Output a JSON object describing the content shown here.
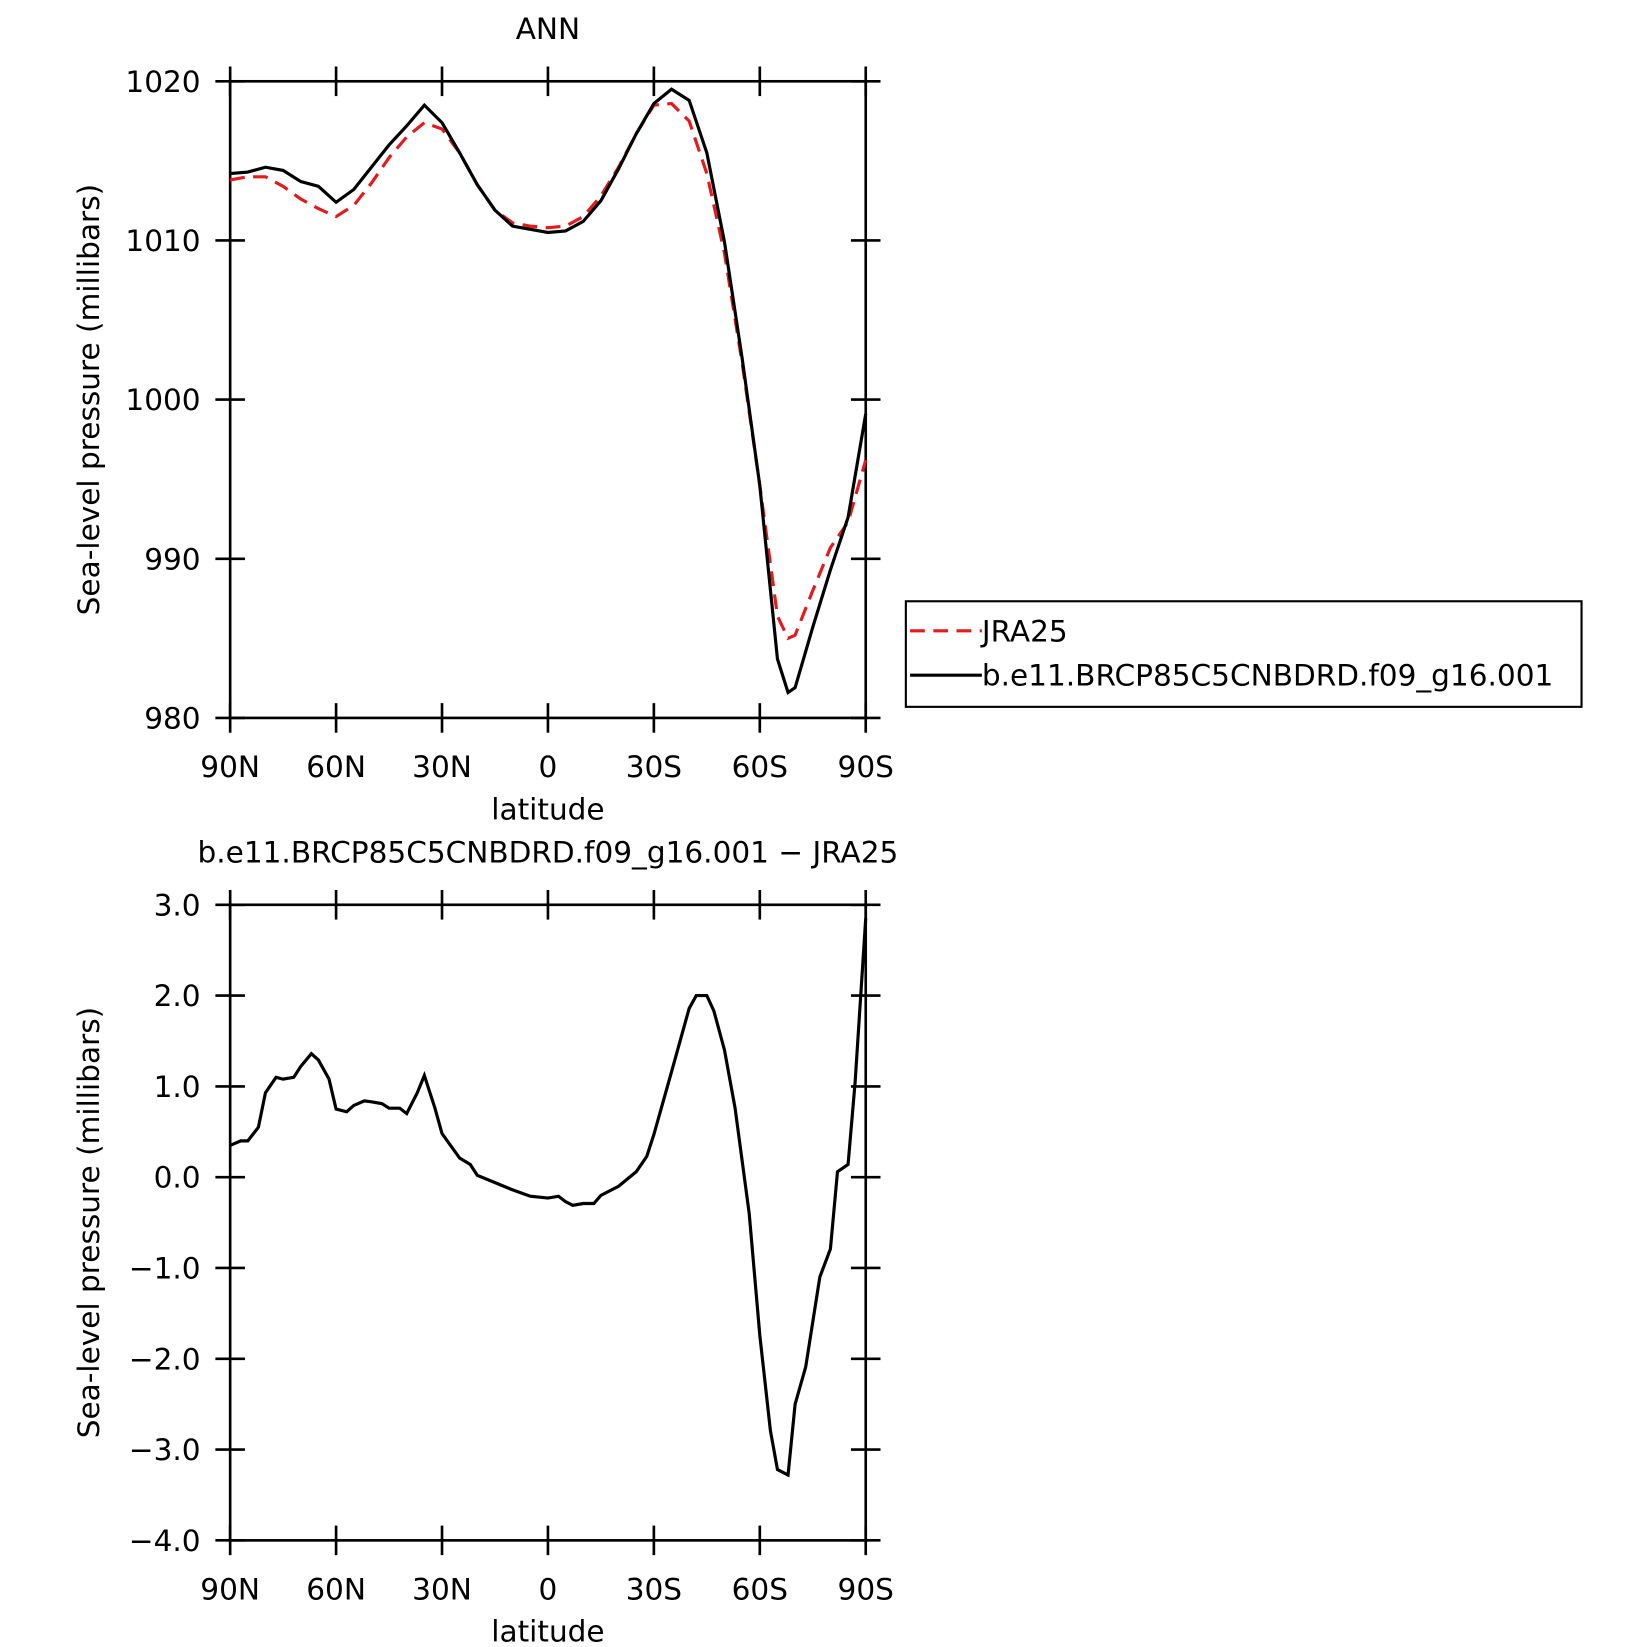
{
  "chart_data": [
    {
      "type": "line",
      "title": "ANN",
      "x_label": "latitude",
      "y_label": "Sea-level pressure (millibars)",
      "x": [
        90,
        85,
        80,
        75,
        70,
        65,
        60,
        55,
        50,
        45,
        40,
        35,
        30,
        25,
        20,
        15,
        10,
        5,
        0,
        -5,
        -10,
        -15,
        -20,
        -25,
        -30,
        -35,
        -40,
        -45,
        -50,
        -55,
        -60,
        -65,
        -68,
        -70,
        -75,
        -80,
        -85,
        -90
      ],
      "series": [
        {
          "name": "JRA25",
          "color": "#e41a1c",
          "style": "dashed",
          "values": [
            1013.8,
            1014.0,
            1014.0,
            1013.4,
            1012.6,
            1012.0,
            1011.5,
            1012.2,
            1013.6,
            1015.2,
            1016.5,
            1017.4,
            1017.0,
            1015.5,
            1013.5,
            1011.9,
            1011.1,
            1010.9,
            1010.8,
            1010.9,
            1011.5,
            1012.8,
            1014.6,
            1016.7,
            1018.5,
            1018.6,
            1017.5,
            1014.2,
            1009.2,
            1002.3,
            994.6,
            986.4,
            985.0,
            985.2,
            988.0,
            990.7,
            992.3,
            996.2
          ]
        },
        {
          "name": "b.e11.BRCP85C5CNBDRD.f09_g16.001",
          "color": "#000000",
          "style": "solid",
          "values": [
            1014.2,
            1014.3,
            1014.6,
            1014.4,
            1013.7,
            1013.4,
            1012.4,
            1013.2,
            1014.6,
            1016.0,
            1017.2,
            1018.5,
            1017.4,
            1015.5,
            1013.5,
            1011.9,
            1010.9,
            1010.7,
            1010.5,
            1010.6,
            1011.2,
            1012.5,
            1014.5,
            1016.7,
            1018.6,
            1019.5,
            1018.8,
            1015.5,
            1009.9,
            1002.6,
            994.6,
            983.7,
            981.6,
            981.9,
            985.7,
            989.3,
            992.6,
            999.1
          ]
        }
      ],
      "xlim": [
        90,
        -90
      ],
      "xticks": [
        {
          "value": 90,
          "label": "90N"
        },
        {
          "value": 60,
          "label": "60N"
        },
        {
          "value": 30,
          "label": "30N"
        },
        0,
        {
          "value": -30,
          "label": "30S"
        },
        {
          "value": -60,
          "label": "60S"
        },
        {
          "value": -90,
          "label": "90S"
        }
      ],
      "ylim": [
        980,
        1020
      ],
      "yticks": [
        980,
        990,
        1000,
        1010,
        1020
      ],
      "legend": "right"
    },
    {
      "type": "line",
      "title": "b.e11.BRCP85C5CNBDRD.f09_g16.001 − JRA25",
      "x_label": "latitude",
      "y_label": "Sea-level pressure (millibars)",
      "x": [
        90,
        87,
        85,
        82,
        80,
        77,
        75,
        72,
        70,
        67,
        65,
        62,
        60,
        57,
        55,
        52,
        50,
        47,
        45,
        42,
        40,
        37,
        35,
        32,
        30,
        25,
        22,
        20,
        15,
        10,
        5,
        0,
        -3,
        -5,
        -7,
        -10,
        -13,
        -15,
        -20,
        -25,
        -28,
        -30,
        -35,
        -40,
        -42,
        -45,
        -47,
        -50,
        -53,
        -57,
        -60,
        -63,
        -65,
        -68,
        -70,
        -73,
        -77,
        -80,
        -82,
        -85,
        -87,
        -90
      ],
      "series": [
        {
          "color": "#000000",
          "values": [
            0.35,
            0.4,
            0.4,
            0.55,
            0.93,
            1.1,
            1.08,
            1.1,
            1.22,
            1.36,
            1.29,
            1.08,
            0.75,
            0.72,
            0.79,
            0.84,
            0.83,
            0.81,
            0.76,
            0.76,
            0.7,
            0.93,
            1.12,
            0.76,
            0.48,
            0.21,
            0.14,
            0.02,
            -0.06,
            -0.14,
            -0.21,
            -0.23,
            -0.21,
            -0.27,
            -0.31,
            -0.29,
            -0.29,
            -0.2,
            -0.1,
            0.06,
            0.23,
            0.47,
            1.16,
            1.86,
            2.0,
            2.0,
            1.83,
            1.4,
            0.76,
            -0.4,
            -1.74,
            -2.79,
            -3.22,
            -3.28,
            -2.5,
            -2.09,
            -1.1,
            -0.79,
            0.06,
            0.14,
            1.05,
            2.85
          ]
        }
      ],
      "xlim": [
        90,
        -90
      ],
      "xticks": [
        {
          "value": 90,
          "label": "90N"
        },
        {
          "value": 60,
          "label": "60N"
        },
        {
          "value": 30,
          "label": "30N"
        },
        0,
        {
          "value": -30,
          "label": "30S"
        },
        {
          "value": -60,
          "label": "60S"
        },
        {
          "value": -90,
          "label": "90S"
        }
      ],
      "ylim": [
        -4,
        3
      ],
      "yticks": [
        {
          "value": -4,
          "label": "−4.0"
        },
        {
          "value": -3,
          "label": "−3.0"
        },
        {
          "value": -2,
          "label": "−2.0"
        },
        {
          "value": -1,
          "label": "−1.0"
        },
        {
          "value": 0,
          "label": "0.0"
        },
        {
          "value": 1,
          "label": "1.0"
        },
        {
          "value": 2,
          "label": "2.0"
        },
        {
          "value": 3,
          "label": "3.0"
        }
      ]
    }
  ]
}
